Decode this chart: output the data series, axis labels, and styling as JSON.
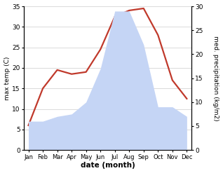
{
  "months": [
    "Jan",
    "Feb",
    "Mar",
    "Apr",
    "May",
    "Jun",
    "Jul",
    "Aug",
    "Sep",
    "Oct",
    "Nov",
    "Dec"
  ],
  "temperature": [
    6.0,
    15.0,
    19.5,
    18.5,
    19.0,
    24.5,
    32.5,
    34.0,
    34.5,
    28.0,
    17.0,
    12.5
  ],
  "precipitation": [
    6.0,
    6.0,
    7.0,
    7.5,
    10.0,
    17.0,
    29.0,
    29.0,
    22.0,
    9.0,
    9.0,
    7.0
  ],
  "temp_color": "#c0392b",
  "precip_color_fill": "#c5d5f5",
  "ylim_left": [
    0,
    35
  ],
  "ylim_right": [
    0,
    30
  ],
  "xlabel": "date (month)",
  "ylabel_left": "max temp (C)",
  "ylabel_right": "med. precipitation (kg/m2)",
  "temp_linewidth": 1.6,
  "background_color": "#ffffff",
  "grid_color": "#cccccc",
  "yticks_left": [
    0,
    5,
    10,
    15,
    20,
    25,
    30,
    35
  ],
  "yticks_right": [
    0,
    5,
    10,
    15,
    20,
    25,
    30
  ]
}
